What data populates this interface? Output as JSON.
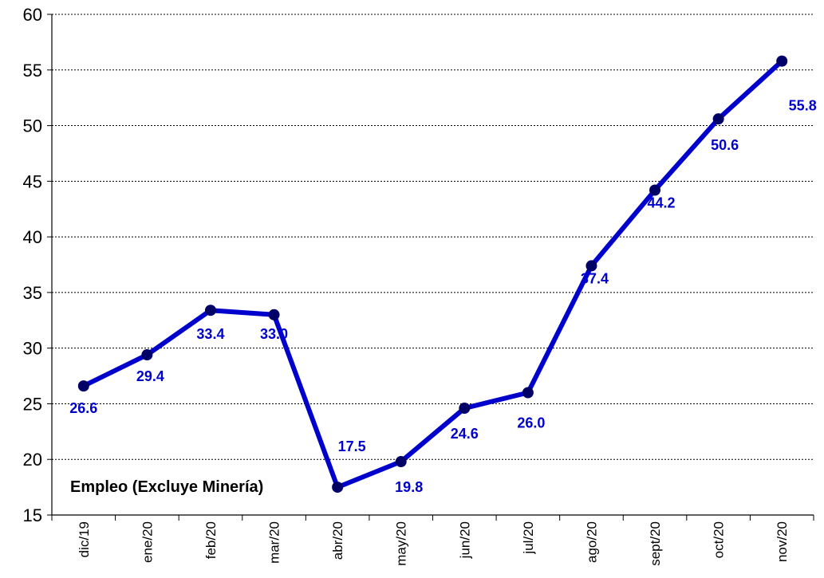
{
  "chart_data": {
    "type": "line",
    "categories": [
      "dic/19",
      "ene/20",
      "feb/20",
      "mar/20",
      "abr/20",
      "may/20",
      "jun/20",
      "jul/20",
      "ago/20",
      "sept/20",
      "oct/20",
      "nov/20"
    ],
    "series": [
      {
        "values": [
          26.6,
          29.4,
          33.4,
          33.0,
          17.5,
          19.8,
          24.6,
          26.0,
          37.4,
          44.2,
          50.6,
          55.8
        ],
        "labels": [
          "26.6",
          "29.4",
          "33.4",
          "33.0",
          "17.5",
          "19.8",
          "24.6",
          "26.0",
          "37.4",
          "44.2",
          "50.6",
          "55.8"
        ]
      }
    ],
    "yticks": [
      "15",
      "20",
      "25",
      "30",
      "35",
      "40",
      "45",
      "50",
      "55",
      "60"
    ],
    "ylim": [
      15,
      60
    ],
    "grid": "horizontal dotted",
    "annotation": "Empleo (Excluye Minería)",
    "title": "",
    "xlabel": "",
    "ylabel": "",
    "colors": {
      "line": "#0000CC",
      "marker": "#000066",
      "label": "#0000CC",
      "grid": "#000000"
    }
  }
}
